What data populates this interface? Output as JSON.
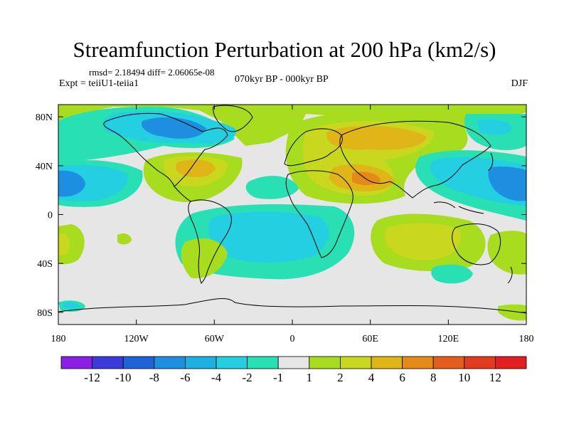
{
  "title": "Streamfunction Perturbation at 200 hPa (km2/s)",
  "stats": "rmsd= 2.18494  diff= 2.06065e-08",
  "experiment": "Expt = teiiU1-teiia1",
  "period": "070kyr BP - 000kyr BP",
  "season": "DJF",
  "axes": {
    "x_ticks": [
      "180",
      "120W",
      "60W",
      "0",
      "60E",
      "120E",
      "180"
    ],
    "y_ticks": [
      "80N",
      "40N",
      "0",
      "40S",
      "80S"
    ]
  },
  "colorbar": {
    "labels": [
      "-12",
      "-10",
      "-8",
      "-6",
      "-4",
      "-2",
      "-1",
      "1",
      "2",
      "4",
      "6",
      "8",
      "10",
      "12"
    ],
    "colors": [
      "#8c1fe6",
      "#3b3bdc",
      "#1f64d6",
      "#1e8ee0",
      "#1fb0e3",
      "#23cfe0",
      "#29e0b4",
      "#e6e6e6",
      "#a8dc1f",
      "#c9d81e",
      "#e0b518",
      "#e38a18",
      "#e35e1c",
      "#e23a1e",
      "#e31e1e"
    ]
  },
  "field_colors": {
    "background": "#e6e6e6",
    "cyan": "#23cfe0",
    "blue": "#1e8ee0",
    "darkblue": "#1f64d6",
    "teal": "#29e0b4",
    "green": "#a8dc1f",
    "yellowgreen": "#c9d81e",
    "yellow": "#e0b518",
    "orange": "#e38a18"
  }
}
